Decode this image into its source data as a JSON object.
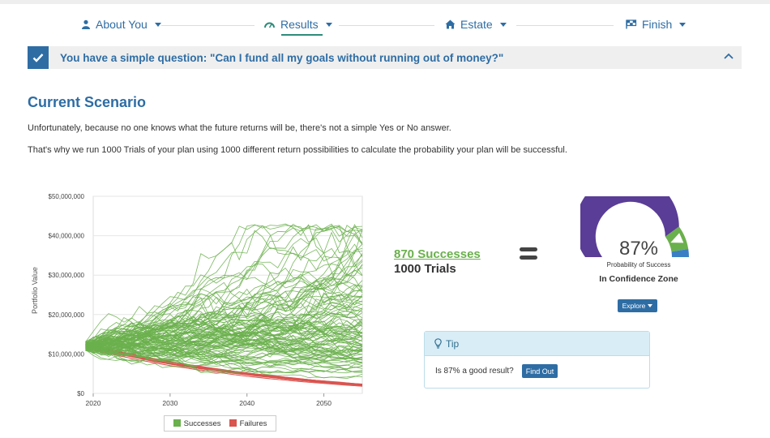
{
  "nav": {
    "steps": [
      {
        "label": "About You",
        "icon": "user-icon"
      },
      {
        "label": "Results",
        "icon": "gauge-icon",
        "active": true
      },
      {
        "label": "Estate",
        "icon": "home-icon"
      },
      {
        "label": "Finish",
        "icon": "flag-icon"
      }
    ]
  },
  "banner": {
    "text": "You have a simple question: \"Can I fund all my goals without running out of money?\""
  },
  "page": {
    "title": "Current Scenario",
    "para1": "Unfortunately, because no one knows what the future returns will be, there's not a simple Yes or No answer.",
    "para2": "That's why we run 1000 Trials of your plan using 1000 different return possibilities to calculate the probability your plan will be successful."
  },
  "results": {
    "successes_label": "870 Successes",
    "trials_label": "1000 Trials",
    "gauge_value": 87,
    "gauge_percent": "87%",
    "gauge_caption": "Probability of Success",
    "zone_label": "In Confidence Zone",
    "explore_label": "Explore"
  },
  "tip": {
    "title": "Tip",
    "question": "Is 87% a good result?",
    "button": "Find Out"
  },
  "chart_data": {
    "type": "line",
    "ylabel": "Portfolio Value",
    "xlabel": "",
    "xlim": [
      2020,
      2055
    ],
    "ylim": [
      0,
      50000000
    ],
    "x_ticks": [
      2020,
      2030,
      2040,
      2050
    ],
    "x_tick_labels": [
      "2020",
      "2030",
      "2040",
      "2050"
    ],
    "y_ticks": [
      0,
      10000000,
      20000000,
      30000000,
      40000000,
      50000000
    ],
    "y_tick_labels": [
      "$0",
      "$10,000,000",
      "$20,000,000",
      "$30,000,000",
      "$40,000,000",
      "$50,000,000"
    ],
    "grid": true,
    "legend": "bottom",
    "start_value": 12000000,
    "series": [
      {
        "name": "Successes",
        "color": "#6ab04c"
      },
      {
        "name": "Failures",
        "color": "#d9534f"
      }
    ]
  },
  "colors": {
    "accent": "#2e6da4",
    "success": "#6ab04c",
    "failure": "#d9534f",
    "gauge_purple": "#5a3d96",
    "gauge_green": "#6ab04c",
    "gauge_blue": "#3a7fc4"
  }
}
